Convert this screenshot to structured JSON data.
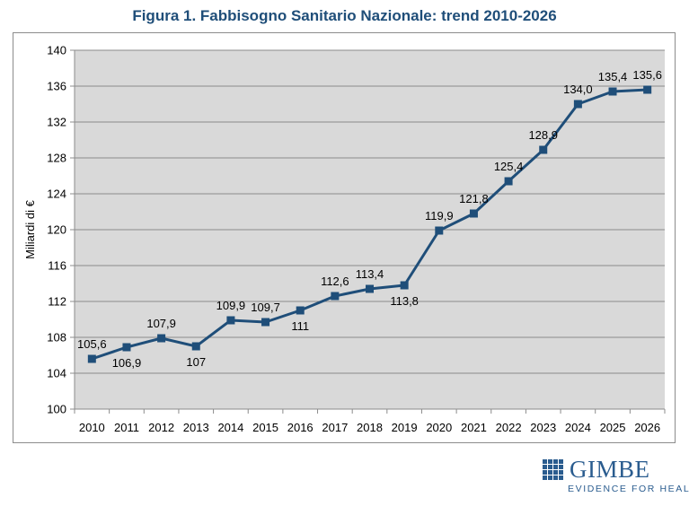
{
  "chart_data": {
    "type": "line",
    "title": "Figura 1. Fabbisogno Sanitario Nazionale: trend 2010-2026",
    "ylabel": "Miliardi di €",
    "xlabel": "",
    "categories": [
      "2010",
      "2011",
      "2012",
      "2013",
      "2014",
      "2015",
      "2016",
      "2017",
      "2018",
      "2019",
      "2020",
      "2021",
      "2022",
      "2023",
      "2024",
      "2025",
      "2026"
    ],
    "series": [
      {
        "values": [
          105.6,
          106.9,
          107.9,
          107,
          109.9,
          109.7,
          111,
          112.6,
          113.4,
          113.8,
          119.9,
          121.8,
          125.4,
          128.9,
          134.0,
          135.4,
          135.6
        ],
        "labels": [
          "105,6",
          "106,9",
          "107,9",
          "107",
          "109,9",
          "109,7",
          "111",
          "112,6",
          "113,4",
          "113,8",
          "119,9",
          "121,8",
          "125,4",
          "128,9",
          "134,0",
          "135,4",
          "135,6"
        ],
        "label_positions": [
          "above",
          "below",
          "above",
          "below",
          "above",
          "above",
          "below",
          "above",
          "above",
          "below",
          "above",
          "above",
          "above",
          "above",
          "above",
          "above",
          "above"
        ]
      }
    ],
    "ylim": [
      100,
      140
    ],
    "yticks": [
      "100",
      "104",
      "108",
      "112",
      "116",
      "120",
      "124",
      "128",
      "132",
      "136",
      "140"
    ],
    "grid": true,
    "plot_background": "#d9d9d9",
    "line_color": "#1f4e79",
    "marker": "square"
  },
  "logo": {
    "word": "GIMBE",
    "tagline": "EVIDENCE FOR HEALTH",
    "icon": "gimbe-grid-logo-icon",
    "color": "#2a5c8f"
  }
}
